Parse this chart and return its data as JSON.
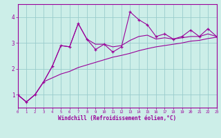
{
  "main_x": [
    0,
    1,
    2,
    3,
    4,
    5,
    6,
    7,
    8,
    9,
    10,
    11,
    12,
    13,
    14,
    15,
    16,
    17,
    18,
    19,
    20,
    21,
    22,
    23
  ],
  "main_y": [
    1.0,
    0.72,
    1.0,
    1.5,
    2.1,
    2.9,
    2.85,
    3.75,
    3.15,
    2.75,
    2.95,
    2.65,
    2.85,
    4.2,
    3.9,
    3.7,
    3.25,
    3.35,
    3.15,
    3.25,
    3.5,
    3.25,
    3.55,
    3.25
  ],
  "upper_x": [
    0,
    1,
    2,
    3,
    4,
    5,
    6,
    7,
    8,
    9,
    10,
    11,
    12,
    13,
    14,
    15,
    16,
    17,
    18,
    19,
    20,
    21,
    22,
    23
  ],
  "upper_y": [
    1.0,
    0.72,
    1.0,
    1.5,
    2.1,
    2.9,
    2.85,
    3.75,
    3.15,
    2.95,
    2.95,
    2.85,
    2.9,
    3.1,
    3.25,
    3.3,
    3.15,
    3.2,
    3.15,
    3.2,
    3.25,
    3.25,
    3.35,
    3.25
  ],
  "lower_x": [
    0,
    1,
    2,
    3,
    4,
    5,
    6,
    7,
    8,
    9,
    10,
    11,
    12,
    13,
    14,
    15,
    16,
    17,
    18,
    19,
    20,
    21,
    22,
    23
  ],
  "lower_y": [
    1.0,
    0.72,
    1.0,
    1.5,
    1.65,
    1.8,
    1.9,
    2.05,
    2.15,
    2.25,
    2.35,
    2.45,
    2.52,
    2.6,
    2.7,
    2.78,
    2.85,
    2.9,
    2.95,
    3.0,
    3.07,
    3.1,
    3.17,
    3.22
  ],
  "line_color": "#990099",
  "bg_color": "#cceee8",
  "grid_color": "#99cccc",
  "xlabel": "Windchill (Refroidissement éolien,°C)",
  "xlim": [
    0,
    23
  ],
  "ylim": [
    0.5,
    4.5
  ],
  "yticks": [
    1,
    2,
    3,
    4
  ],
  "xticks": [
    0,
    1,
    2,
    3,
    4,
    5,
    6,
    7,
    8,
    9,
    10,
    11,
    12,
    13,
    14,
    15,
    16,
    17,
    18,
    19,
    20,
    21,
    22,
    23
  ]
}
